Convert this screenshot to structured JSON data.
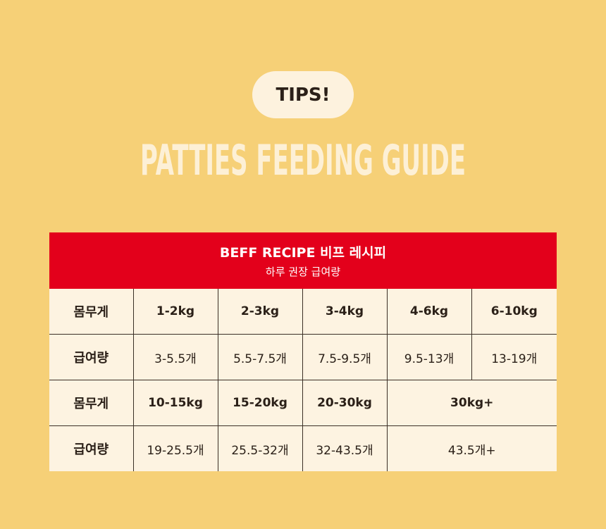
{
  "header": {
    "badge": "TIPS!",
    "title": "PATTIES FEEDING GUIDE"
  },
  "table": {
    "title": "BEFF RECIPE  비프 레시피",
    "subtitle": "하루 권장 급여량",
    "rows": [
      [
        "몸무게",
        "1-2kg",
        "2-3kg",
        "3-4kg",
        "4-6kg",
        "6-10kg"
      ],
      [
        "급여량",
        "3-5.5개",
        "5.5-7.5개",
        "7.5-9.5개",
        "9.5-13개",
        "13-19개"
      ],
      [
        "몸무게",
        "10-15kg",
        "15-20kg",
        "20-30kg",
        "30kg+"
      ],
      [
        "급여량",
        "19-25.5개",
        "25.5-32개",
        "32-43.5개",
        "43.5개+"
      ]
    ]
  }
}
